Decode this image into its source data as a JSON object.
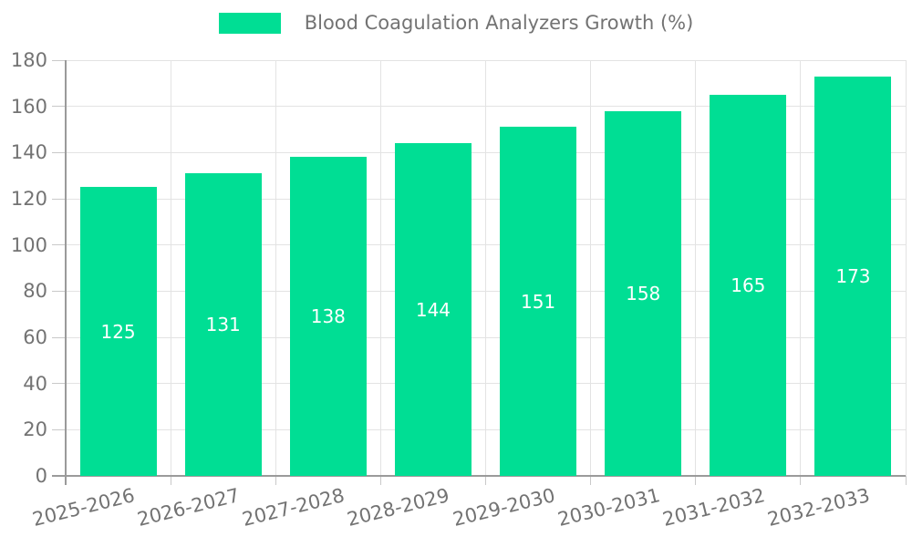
{
  "chart_data": {
    "type": "bar",
    "series_name": "Blood Coagulation Analyzers Growth (%)",
    "categories": [
      "2025-2026",
      "2026-2027",
      "2027-2028",
      "2028-2029",
      "2029-2030",
      "2030-2031",
      "2031-2032",
      "2032-2033"
    ],
    "values": [
      125,
      131,
      138,
      144,
      151,
      158,
      165,
      173
    ],
    "yticks": [
      0,
      20,
      40,
      60,
      80,
      100,
      120,
      140,
      160,
      180
    ],
    "ylim": [
      0,
      180
    ],
    "xlabel": "",
    "ylabel": "",
    "grid": "horizontal and vertical gridlines",
    "legend_position": "top-center",
    "value_labels": "inside-center"
  },
  "colors": {
    "bar": "#00DE94",
    "bar_label": "#ffffff",
    "grid": "#e3e3e3",
    "tick": "#c9c9c9",
    "axis": "#9a9a9a",
    "text": "#737373",
    "background": "#ffffff"
  }
}
